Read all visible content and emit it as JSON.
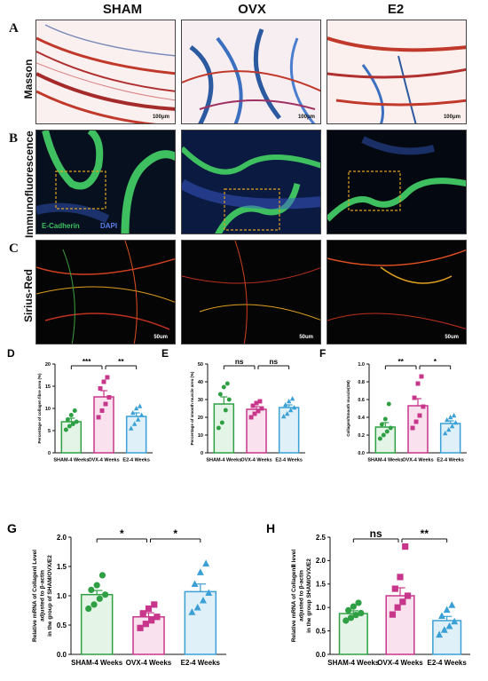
{
  "columns": [
    "SHAM",
    "OVX",
    "E2"
  ],
  "panels": {
    "A": {
      "letter": "A",
      "row_label": "Masson",
      "scale_bar": "100μm"
    },
    "B": {
      "letter": "B",
      "row_label": "Immunofluorescence",
      "stain_green": "E-Cadherin",
      "stain_blue": "DAPI"
    },
    "C": {
      "letter": "C",
      "row_label": "Sirius-Red",
      "scale_bar": "50um"
    }
  },
  "colors": {
    "sham": "#2ea043",
    "ovx": "#c8368c",
    "e2": "#3aa0d6"
  },
  "chart_data": [
    {
      "id": "D",
      "letter": "D",
      "type": "bar",
      "ylabel": "Percentage of collagen fibre area (%)",
      "categories": [
        "SHAM-4 Weeks",
        "OVX-4 Weeks",
        "E2-4 Weeks"
      ],
      "values": [
        7.0,
        12.6,
        8.2
      ],
      "errors": [
        0.8,
        1.4,
        0.8
      ],
      "points": [
        [
          5.2,
          6.0,
          6.5,
          7.0,
          7.5,
          8.5,
          9.5
        ],
        [
          8.0,
          9.5,
          11.0,
          12.5,
          14.5,
          16.0,
          17.0
        ],
        [
          5.5,
          6.5,
          7.5,
          8.5,
          9.0,
          10.0,
          10.5
        ]
      ],
      "ylim": [
        0,
        20
      ],
      "yticks": [
        0,
        5,
        10,
        15,
        20
      ],
      "significance": [
        {
          "from": 0,
          "to": 1,
          "label": "***"
        },
        {
          "from": 1,
          "to": 2,
          "label": "**"
        }
      ]
    },
    {
      "id": "E",
      "letter": "E",
      "type": "bar",
      "ylabel": "Percentage of smooth muscle area (%)",
      "categories": [
        "SHAM-4 Weeks",
        "OVX-4 Weeks",
        "E2-4 Weeks"
      ],
      "values": [
        27.5,
        24.5,
        25.5
      ],
      "errors": [
        4.0,
        1.5,
        1.5
      ],
      "points": [
        [
          14.0,
          17.0,
          24.0,
          30.0,
          33.0,
          37.0,
          39.0
        ],
        [
          20.0,
          22.0,
          23.5,
          25.0,
          26.5,
          28.0,
          29.0
        ],
        [
          20.5,
          22.0,
          24.0,
          25.5,
          27.0,
          29.0,
          30.5
        ]
      ],
      "ylim": [
        0,
        50
      ],
      "yticks": [
        0,
        10,
        20,
        30,
        40,
        50
      ],
      "significance": [
        {
          "from": 0,
          "to": 1,
          "label": "ns"
        },
        {
          "from": 1,
          "to": 2,
          "label": "ns"
        }
      ]
    },
    {
      "id": "F",
      "letter": "F",
      "type": "bar",
      "ylabel": "Collagen/Smooth muscle(SM)",
      "categories": [
        "SHAM-4 Weeks",
        "OVX-4 Weeks",
        "E2-4 Weeks"
      ],
      "values": [
        0.29,
        0.53,
        0.33
      ],
      "errors": [
        0.05,
        0.08,
        0.03
      ],
      "points": [
        [
          0.16,
          0.2,
          0.24,
          0.28,
          0.32,
          0.38,
          0.55
        ],
        [
          0.28,
          0.35,
          0.42,
          0.52,
          0.62,
          0.78,
          0.86
        ],
        [
          0.22,
          0.26,
          0.3,
          0.34,
          0.37,
          0.4,
          0.42
        ]
      ],
      "ylim": [
        0,
        1.0
      ],
      "yticks": [
        0.0,
        0.2,
        0.4,
        0.6,
        0.8,
        1.0
      ],
      "significance": [
        {
          "from": 0,
          "to": 1,
          "label": "**"
        },
        {
          "from": 1,
          "to": 2,
          "label": "*"
        }
      ]
    },
    {
      "id": "G",
      "letter": "G",
      "type": "bar",
      "ylabel": [
        "Relative mRNA of CollagenⅠ Level",
        "adjusted to β-actin",
        "in the group of SHAM/OVX/E2"
      ],
      "categories": [
        "SHAM-4 Weeks",
        "OVX-4 Weeks",
        "E2-4 Weeks"
      ],
      "values": [
        1.02,
        0.64,
        1.07
      ],
      "errors": [
        0.07,
        0.07,
        0.13
      ],
      "points": [
        [
          0.78,
          0.85,
          0.95,
          1.02,
          1.1,
          1.18,
          1.35
        ],
        [
          0.45,
          0.52,
          0.58,
          0.64,
          0.7,
          0.78,
          0.85
        ],
        [
          0.72,
          0.8,
          0.92,
          1.05,
          1.2,
          1.4,
          1.55
        ]
      ],
      "ylim": [
        0,
        2.0
      ],
      "yticks": [
        0.0,
        0.5,
        1.0,
        1.5,
        2.0
      ],
      "significance": [
        {
          "from": 0,
          "to": 1,
          "label": "*"
        },
        {
          "from": 1,
          "to": 2,
          "label": "*"
        }
      ]
    },
    {
      "id": "H",
      "letter": "H",
      "type": "bar",
      "ylabel": [
        "Relative mRNA of CollagenⅢ level",
        "adjusted to β-actin",
        "in the group SHAM/OVX/E2"
      ],
      "categories": [
        "SHAM-4 Weeks",
        "OVX-4 Weeks",
        "E2-4 Weeks"
      ],
      "values": [
        0.87,
        1.25,
        0.72
      ],
      "errors": [
        0.06,
        0.17,
        0.09
      ],
      "points": [
        [
          0.72,
          0.78,
          0.84,
          0.88,
          0.94,
          1.02,
          1.1
        ],
        [
          0.85,
          1.0,
          1.12,
          1.25,
          1.4,
          1.65,
          2.3
        ],
        [
          0.42,
          0.52,
          0.6,
          0.7,
          0.82,
          0.95,
          1.05
        ]
      ],
      "ylim": [
        0,
        2.5
      ],
      "yticks": [
        0.0,
        0.5,
        1.0,
        1.5,
        2.0,
        2.5
      ],
      "significance": [
        {
          "from": 0,
          "to": 1,
          "label": "ns"
        },
        {
          "from": 1,
          "to": 2,
          "label": "**"
        }
      ]
    }
  ]
}
